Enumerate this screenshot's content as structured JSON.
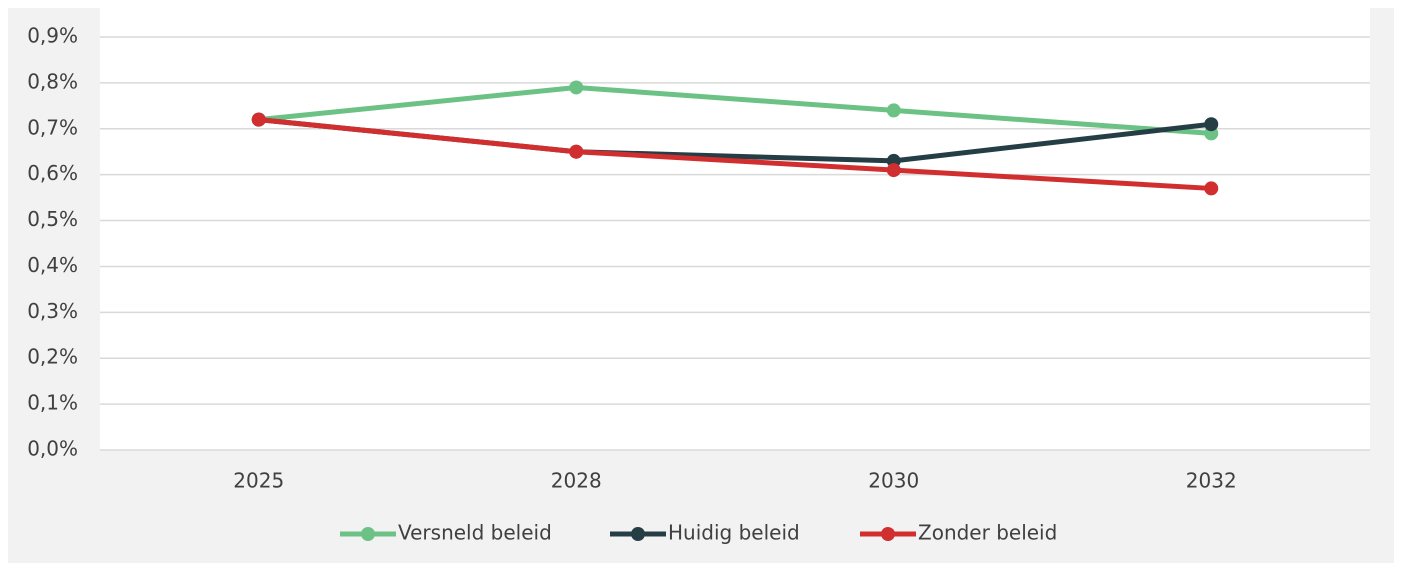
{
  "chart_data": {
    "type": "line",
    "categories": [
      "2025",
      "2028",
      "2030",
      "2032"
    ],
    "series": [
      {
        "name": "Versneld beleid",
        "color": "#6cc185",
        "values": [
          0.72,
          0.79,
          0.74,
          0.69
        ]
      },
      {
        "name": "Huidig beleid",
        "color": "#253e45",
        "values": [
          0.72,
          0.65,
          0.63,
          0.71
        ]
      },
      {
        "name": "Zonder beleid",
        "color": "#d12f2f",
        "values": [
          0.72,
          0.65,
          0.61,
          0.57
        ]
      }
    ],
    "ylim": [
      0,
      0.9
    ],
    "yticks": [
      {
        "value": 0,
        "label": "0,0%"
      },
      {
        "value": 0.1,
        "label": "0,1%"
      },
      {
        "value": 0.2,
        "label": "0,2%"
      },
      {
        "value": 0.3,
        "label": "0,3%"
      },
      {
        "value": 0.4,
        "label": "0,4%"
      },
      {
        "value": 0.5,
        "label": "0,5%"
      },
      {
        "value": 0.6,
        "label": "0,6%"
      },
      {
        "value": 0.7,
        "label": "0,7%"
      },
      {
        "value": 0.8,
        "label": "0,8%"
      },
      {
        "value": 0.9,
        "label": "0,9%"
      }
    ],
    "grid": true,
    "legend": "bottom"
  }
}
